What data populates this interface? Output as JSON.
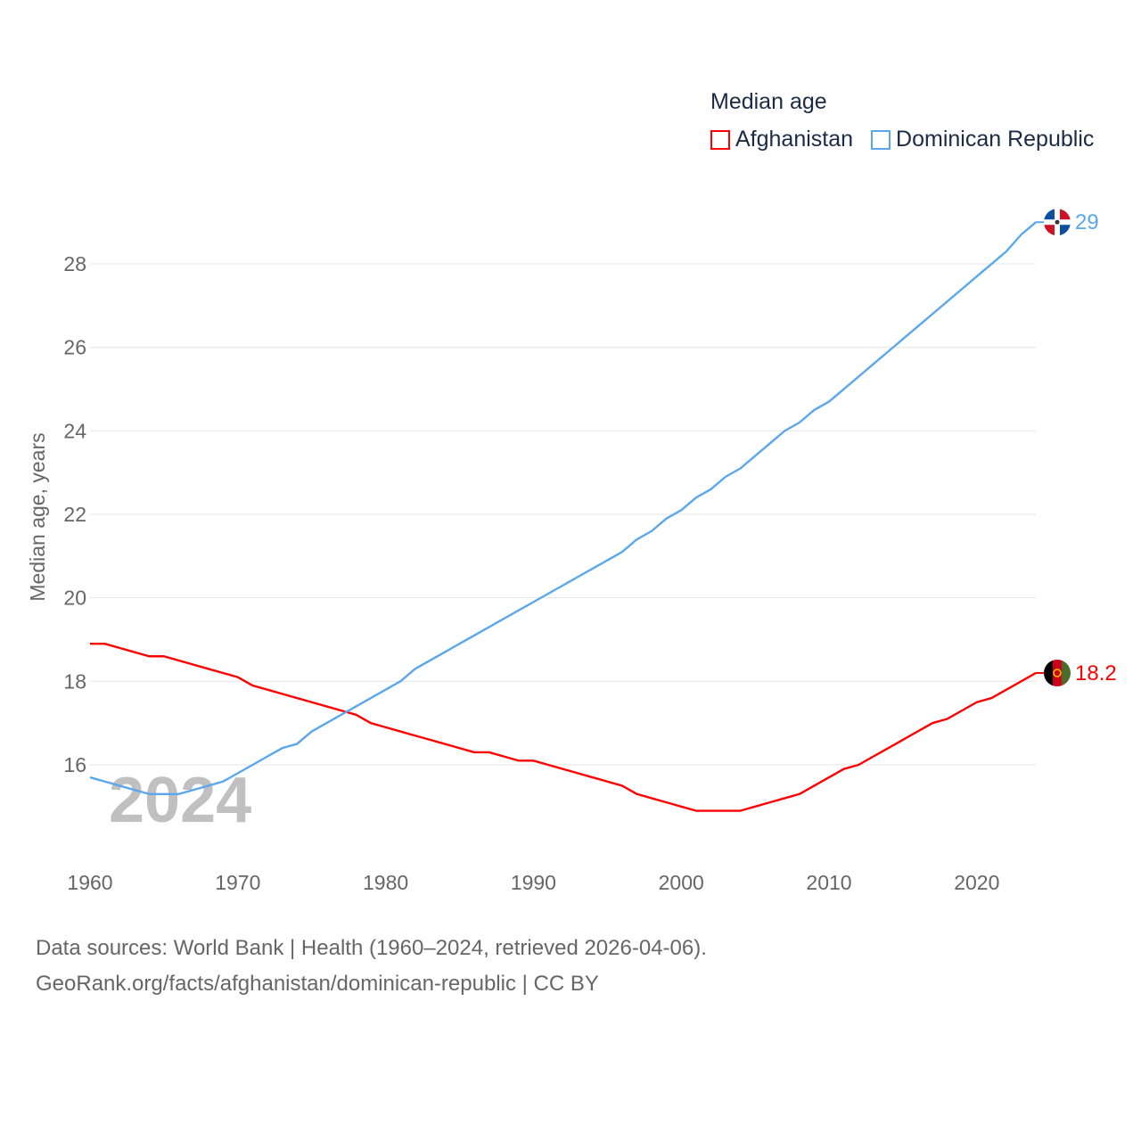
{
  "chart_data": {
    "type": "line",
    "title": "Median age",
    "xlabel": "",
    "ylabel": "Median age, years",
    "xlim": [
      1960,
      2024
    ],
    "ylim": [
      14,
      29.5
    ],
    "x_ticks": [
      1960,
      1970,
      1980,
      1990,
      2000,
      2010,
      2020
    ],
    "y_ticks": [
      16,
      18,
      20,
      22,
      24,
      26,
      28
    ],
    "grid": true,
    "legend_position": "top-right",
    "watermark_year": "2024",
    "x": [
      1960,
      1961,
      1962,
      1963,
      1964,
      1965,
      1966,
      1967,
      1968,
      1969,
      1970,
      1971,
      1972,
      1973,
      1974,
      1975,
      1976,
      1977,
      1978,
      1979,
      1980,
      1981,
      1982,
      1983,
      1984,
      1985,
      1986,
      1987,
      1988,
      1989,
      1990,
      1991,
      1992,
      1993,
      1994,
      1995,
      1996,
      1997,
      1998,
      1999,
      2000,
      2001,
      2002,
      2003,
      2004,
      2005,
      2006,
      2007,
      2008,
      2009,
      2010,
      2011,
      2012,
      2013,
      2014,
      2015,
      2016,
      2017,
      2018,
      2019,
      2020,
      2021,
      2022,
      2023,
      2024
    ],
    "series": [
      {
        "name": "Afghanistan",
        "color": "#ff0000",
        "end_label": "18.2",
        "values": [
          18.9,
          18.9,
          18.8,
          18.7,
          18.6,
          18.6,
          18.5,
          18.4,
          18.3,
          18.2,
          18.1,
          17.9,
          17.8,
          17.7,
          17.6,
          17.5,
          17.4,
          17.3,
          17.2,
          17.0,
          16.9,
          16.8,
          16.7,
          16.6,
          16.5,
          16.4,
          16.3,
          16.3,
          16.2,
          16.1,
          16.1,
          16.0,
          15.9,
          15.8,
          15.7,
          15.6,
          15.5,
          15.3,
          15.2,
          15.1,
          15.0,
          14.9,
          14.9,
          14.9,
          14.9,
          15.0,
          15.1,
          15.2,
          15.3,
          15.5,
          15.7,
          15.9,
          16.0,
          16.2,
          16.4,
          16.6,
          16.8,
          17.0,
          17.1,
          17.3,
          17.5,
          17.6,
          17.8,
          18.0,
          18.2
        ]
      },
      {
        "name": "Dominican Republic",
        "color": "#5aa7ec",
        "end_label": "29",
        "values": [
          15.7,
          15.6,
          15.5,
          15.4,
          15.3,
          15.3,
          15.3,
          15.4,
          15.5,
          15.6,
          15.8,
          16.0,
          16.2,
          16.4,
          16.5,
          16.8,
          17.0,
          17.2,
          17.4,
          17.6,
          17.8,
          18.0,
          18.3,
          18.5,
          18.7,
          18.9,
          19.1,
          19.3,
          19.5,
          19.7,
          19.9,
          20.1,
          20.3,
          20.5,
          20.7,
          20.9,
          21.1,
          21.4,
          21.6,
          21.9,
          22.1,
          22.4,
          22.6,
          22.9,
          23.1,
          23.4,
          23.7,
          24.0,
          24.2,
          24.5,
          24.7,
          25.0,
          25.3,
          25.6,
          25.9,
          26.2,
          26.5,
          26.8,
          27.1,
          27.4,
          27.7,
          28.0,
          28.3,
          28.7,
          29.0
        ]
      }
    ]
  },
  "footer": {
    "line1": "Data sources: World Bank | Health (1960–2024, retrieved 2026-04-06).",
    "line2": "GeoRank.org/facts/afghanistan/dominican-republic | CC BY"
  }
}
